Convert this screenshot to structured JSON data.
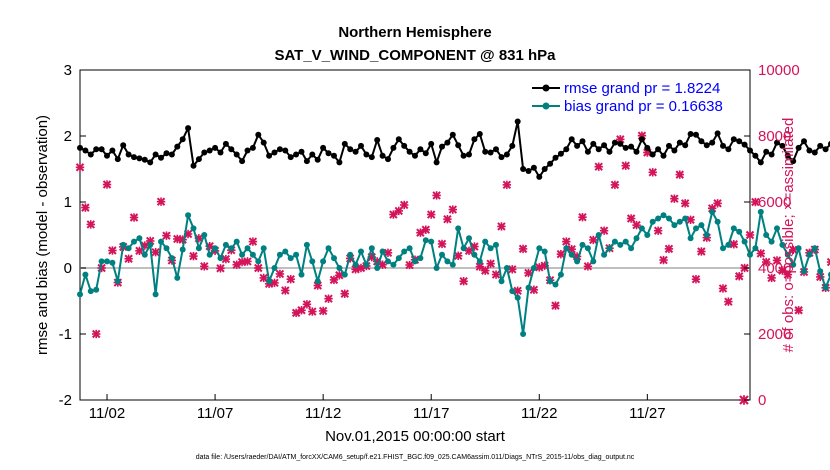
{
  "chart_data": {
    "type": "line",
    "title": "Northern Hemisphere",
    "subtitle": "SAT_V_WIND_COMPONENT @ 831 hPa",
    "xlabel": "Nov.01,2015 00:00:00 start",
    "ylabel": "rmse and bias (model - observation)",
    "y2label": "# of obs: o=possible; ×=assimilated",
    "footer": "data file: /Users/raeder/DAI/ATM_forcXX/CAM6_setup/f.e21.FHIST_BGC.f09_025.CAM6assim.011/Diags_NTrS_2015-11/obs_diag_output.nc",
    "x_ticks": [
      {
        "value": 1.5,
        "label": "11/02"
      },
      {
        "value": 6.5,
        "label": "11/07"
      },
      {
        "value": 11.5,
        "label": "11/12"
      },
      {
        "value": 16.5,
        "label": "11/17"
      },
      {
        "value": 21.5,
        "label": "11/22"
      },
      {
        "value": 26.5,
        "label": "11/27"
      }
    ],
    "xlim": [
      0.25,
      31.25
    ],
    "ylim": [
      -2,
      3
    ],
    "y_ticks": [
      -2,
      -1,
      0,
      1,
      2,
      3
    ],
    "y2lim": [
      0,
      10000
    ],
    "y2_ticks": [
      0,
      2000,
      4000,
      6000,
      8000,
      10000
    ],
    "zero_line": 0,
    "legend_position": "top-right",
    "colors": {
      "rmse": "#000000",
      "bias": "#008080",
      "obs": "#d4145a",
      "zero": "#bfbfbf"
    },
    "series": [
      {
        "name": "rmse grand pr = 1.8224",
        "axis": "left",
        "time_step_days": 0.25,
        "start_day": 0.25,
        "values": [
          1.82,
          1.78,
          1.72,
          1.8,
          1.8,
          1.7,
          1.78,
          1.65,
          1.86,
          1.72,
          1.68,
          1.66,
          1.64,
          1.6,
          1.72,
          1.67,
          1.74,
          1.72,
          1.84,
          1.95,
          2.12,
          1.55,
          1.65,
          1.75,
          1.78,
          1.82,
          1.75,
          1.88,
          1.8,
          1.72,
          1.62,
          1.78,
          1.82,
          2.02,
          1.9,
          1.7,
          1.75,
          1.8,
          1.78,
          1.68,
          1.72,
          1.76,
          1.62,
          1.72,
          1.64,
          1.82,
          1.74,
          1.7,
          1.6,
          1.88,
          1.8,
          1.76,
          1.85,
          1.72,
          1.68,
          1.94,
          1.7,
          1.65,
          1.82,
          1.95,
          1.85,
          1.76,
          1.7,
          1.8,
          1.74,
          1.88,
          1.6,
          1.84,
          1.9,
          2.02,
          1.86,
          1.7,
          1.72,
          1.95,
          2.03,
          1.76,
          1.75,
          1.8,
          1.68,
          1.72,
          1.85,
          2.22,
          1.5,
          1.47,
          1.52,
          1.38,
          1.5,
          1.58,
          1.67,
          1.73,
          1.8,
          1.95,
          1.85,
          1.92,
          1.76,
          1.88,
          1.8,
          1.86,
          1.76,
          1.9,
          1.88,
          1.82,
          1.84,
          1.76,
          1.95,
          1.82,
          1.72,
          1.8,
          1.7,
          1.85,
          1.78,
          1.9,
          1.86,
          2.03,
          2.02,
          1.92,
          1.86,
          1.9,
          2.04,
          1.85,
          1.8,
          1.95,
          1.92,
          1.87,
          1.78,
          1.7,
          1.6,
          1.76,
          1.72,
          1.9,
          1.85,
          1.7,
          1.62,
          1.82,
          1.92,
          1.78,
          1.75,
          1.85,
          1.8,
          1.88,
          1.8,
          1.93,
          1.86,
          1.82,
          1.96,
          2.2,
          1.95,
          2.1,
          1.98,
          1.92,
          1.84,
          1.8,
          1.9,
          1.84,
          1.85,
          1.83,
          1.79,
          1.88,
          1.8,
          1.7,
          1.9,
          1.99,
          2.03,
          1.95,
          1.9,
          1.84,
          1.83,
          1.7,
          1.76,
          1.8,
          1.74,
          1.64,
          1.79,
          1.85,
          1.92,
          1.82
        ]
      },
      {
        "name": "bias grand pr = 0.16638",
        "axis": "left",
        "time_step_days": 0.25,
        "start_day": 0.25,
        "values": [
          -0.4,
          -0.1,
          -0.35,
          -0.33,
          0.1,
          0.1,
          0.08,
          -0.2,
          0.35,
          0.3,
          0.4,
          0.45,
          0.2,
          0.35,
          -0.4,
          0.4,
          0.3,
          0.15,
          -0.15,
          0.28,
          0.8,
          0.6,
          0.3,
          0.5,
          0.2,
          0.3,
          0.15,
          0.35,
          0.3,
          0.4,
          0.2,
          0.3,
          0.2,
          0.1,
          0.3,
          -0.2,
          0.0,
          0.2,
          0.25,
          0.15,
          0.2,
          -0.1,
          0.35,
          0.1,
          -0.2,
          0.1,
          0.3,
          0.15,
          0.0,
          -0.1,
          0.2,
          0.05,
          0.25,
          0.05,
          0.3,
          0.0,
          0.25,
          0.1,
          0.05,
          0.15,
          0.25,
          0.3,
          0.1,
          0.15,
          0.42,
          0.4,
          0.0,
          0.2,
          0.1,
          0.05,
          0.6,
          0.3,
          0.45,
          0.2,
          0.1,
          0.4,
          0.3,
          0.35,
          -0.2,
          0.0,
          -0.35,
          -0.45,
          -1.0,
          -0.3,
          0.0,
          0.3,
          0.25,
          -0.2,
          -0.25,
          -0.1,
          0.3,
          0.2,
          0.1,
          0.35,
          0.3,
          0.1,
          0.5,
          0.2,
          0.3,
          0.4,
          0.35,
          0.4,
          0.3,
          0.45,
          0.6,
          0.5,
          0.7,
          0.75,
          0.8,
          0.75,
          0.65,
          0.7,
          0.75,
          0.45,
          0.6,
          0.65,
          0.5,
          0.85,
          0.7,
          0.3,
          0.35,
          0.6,
          0.55,
          0.4,
          0.2,
          0.3,
          0.85,
          0.5,
          0.4,
          0.6,
          0.35,
          0.2,
          0.05,
          0.3,
          -0.05,
          0.2,
          0.3,
          -0.05,
          -0.3,
          -0.1,
          -0.2,
          -0.05,
          0.0,
          -0.1,
          -0.2,
          -0.25,
          -0.1,
          0.3,
          0.35,
          0.2,
          0.1,
          0.3,
          -0.1,
          0.1,
          0.4,
          -0.3,
          -0.3,
          0.2,
          -0.1,
          0.1,
          0.0,
          0.25,
          0.05,
          0.2,
          0.0,
          0.3,
          0.25,
          0.2,
          0.3,
          -0.1,
          0.1,
          0.1,
          -0.3,
          -0.4,
          0.1,
          0.25,
          0.25
        ]
      },
      {
        "name": "assimilated observations",
        "axis": "right",
        "marker": "x",
        "time_step_days": 0.25,
        "start_day": 0.25,
        "values": [
          7050,
          5830,
          5320,
          2000,
          4000,
          6530,
          4530,
          3560,
          4640,
          4280,
          5530,
          4520,
          4680,
          4820,
          4480,
          6010,
          4980,
          4230,
          4880,
          4860,
          5030,
          4360,
          4900,
          4050,
          4660,
          4520,
          3990,
          4270,
          4540,
          4100,
          4180,
          4200,
          4800,
          4000,
          3700,
          3520,
          3550,
          3820,
          3320,
          3660,
          2640,
          2720,
          2900,
          2680,
          3470,
          2700,
          3070,
          3640,
          3780,
          3220,
          4290,
          3960,
          4000,
          4060,
          4330,
          4200,
          4100,
          4460,
          5620,
          5730,
          5910,
          4090,
          4250,
          5070,
          5160,
          5620,
          6200,
          4730,
          5480,
          5770,
          4370,
          3600,
          4520,
          4650,
          4040,
          3920,
          4130,
          3800,
          5260,
          6520,
          3960,
          3310,
          4580,
          3850,
          3340,
          4020,
          4070,
          3630,
          2860,
          4420,
          4800,
          4570,
          4350,
          5540,
          4050,
          4850,
          7070,
          5130,
          4600,
          6520,
          7900,
          7100,
          5500,
          5300,
          8010,
          7500,
          6900,
          5130,
          4240,
          4580,
          6100,
          6830,
          5960,
          5460,
          3660,
          4500,
          4920,
          5810,
          5960,
          3380,
          2980,
          4720,
          3750,
          4000,
          5000,
          6000,
          4440,
          4180,
          3700,
          4230,
          3920,
          3800,
          4550,
          2720,
          3880,
          4460,
          4560,
          3730,
          3400,
          4180,
          3800,
          4000,
          4280,
          4750,
          3930,
          3450,
          4450,
          5100,
          4800,
          4980,
          5340,
          4380,
          4530,
          4760,
          4150,
          5550,
          5340,
          4070,
          5000,
          4200,
          4740,
          6300,
          5960,
          4840,
          4150,
          4680,
          4000,
          4380,
          3870,
          4300,
          3600,
          3400,
          2820,
          3400,
          3550,
          3650,
          4230,
          4100
        ]
      }
    ]
  }
}
